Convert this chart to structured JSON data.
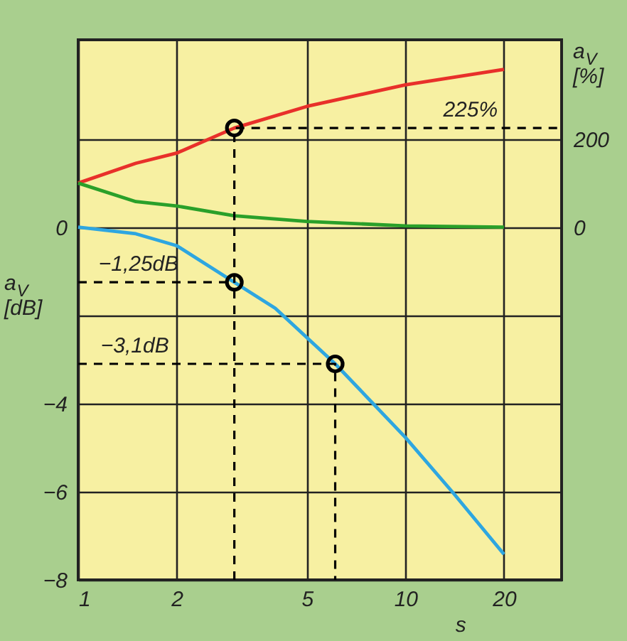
{
  "chart_data": {
    "type": "line",
    "xlabel": "s",
    "ylabel": "a$_{V}$ [dB]",
    "y2label": "a$_{V}$ [%]",
    "xlim": [
      1,
      30
    ],
    "xticks": [
      1,
      2,
      5,
      10,
      20
    ],
    "log": "x",
    "ylim": [
      -8,
      4.25
    ],
    "yticks": [
      {
        "value": 2,
        "label": null
      },
      0,
      {
        "value": -2,
        "label": null
      },
      -4,
      -6,
      -8
    ],
    "y2lim": [
      -800,
      425
    ],
    "y2ticks": [
      0,
      200
    ],
    "grid": true,
    "series": [
      {
        "color": "#2ea6e0",
        "marker": "none",
        "x": [
          1,
          1.5,
          2,
          3,
          4,
          6.1,
          10,
          14,
          20
        ],
        "values": [
          0,
          -0.15,
          -0.42,
          -1.25,
          -1.84,
          -3.1,
          -4.77,
          -6.03,
          -7.42
        ]
      },
      {
        "color": "#e8302a",
        "marker": "none",
        "axis": "y2",
        "x": [
          1,
          1.5,
          2,
          3,
          5,
          10,
          20
        ],
        "values": [
          100,
          145,
          168,
          225,
          274,
          323,
          358
        ]
      },
      {
        "color": "#2aa02a",
        "marker": "none",
        "axis": "y2",
        "x": [
          1,
          1.5,
          2,
          3,
          5,
          10,
          20
        ],
        "values": [
          100,
          58,
          48,
          26,
          13,
          3,
          0
        ]
      },
      {
        "color": "#000000",
        "marker": "none",
        "line_style": "dashed",
        "axis": "y2",
        "x": [
          3,
          3,
          30
        ],
        "values": [
          -800,
          225,
          225
        ]
      },
      {
        "color": "#000000",
        "marker": "none",
        "line_style": "dashed",
        "x": [
          1,
          3
        ],
        "values": [
          -1.25,
          -1.25
        ]
      },
      {
        "color": "#000000",
        "marker": "none",
        "line_style": "dashed",
        "x": [
          1,
          6.1,
          6.1
        ],
        "values": [
          -3.1,
          -3.1,
          -8
        ]
      },
      {
        "type": "scatter",
        "color": "#000000",
        "marker": "circle",
        "x": [
          3,
          6.1
        ],
        "values": [
          -1.25,
          -3.1
        ]
      },
      {
        "type": "scatter",
        "color": "#000000",
        "marker": "circle",
        "axis": "y2",
        "x": [
          3
        ],
        "values": [
          225
        ]
      }
    ],
    "annotations": [
      {
        "text": "225%",
        "x": 15.8,
        "y": 2.25
      },
      {
        "text": "−1,25dB",
        "x": 1.53,
        "y": -1.25
      },
      {
        "text": "−3,1dB",
        "x": 1.49,
        "y": -3.1
      }
    ]
  }
}
